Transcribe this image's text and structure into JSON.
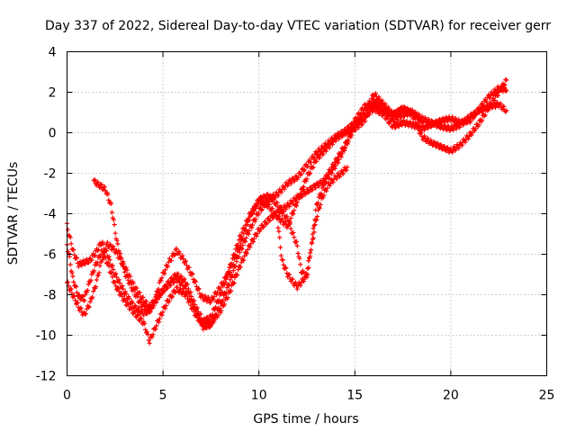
{
  "chart_data": {
    "type": "scatter",
    "title": "Day 337 of 2022, Sidereal Day-to-day VTEC variation (SDTVAR) for receiver gerr",
    "xlabel": "GPS time / hours",
    "ylabel": "SDTVAR / TECUs",
    "xlim": [
      0,
      25
    ],
    "ylim": [
      -12,
      4
    ],
    "xticks": [
      "0",
      "5",
      "10",
      "15",
      "20",
      "25"
    ],
    "yticks": [
      "-12",
      "-10",
      "-8",
      "-6",
      "-4",
      "-2",
      "0",
      "2",
      "4"
    ],
    "grid": true,
    "marker": "plus",
    "color": "#ff0000",
    "series": [
      {
        "x": [
          0.0,
          0.3,
          0.6,
          0.9,
          1.2,
          1.5,
          1.8,
          2.1,
          2.5,
          3.0,
          3.5,
          4.0,
          4.3,
          4.7,
          5.2,
          5.7,
          6.2,
          6.7,
          7.1,
          7.5,
          8.0,
          8.5,
          9.0,
          9.5,
          10.0,
          10.5,
          11.0,
          11.5,
          12.0,
          12.5,
          13.0,
          13.5,
          14.0,
          14.5,
          15.0,
          15.5,
          16.0,
          16.5,
          17.0,
          17.5,
          18.0,
          18.5,
          19.0,
          19.5,
          20.0,
          20.5,
          21.0,
          21.5,
          22.0,
          22.5,
          22.9
        ],
        "y": [
          -7.4,
          -8.0,
          -8.6,
          -9.0,
          -8.4,
          -7.5,
          -6.3,
          -5.5,
          -5.8,
          -6.6,
          -7.6,
          -8.3,
          -8.6,
          -8.1,
          -7.6,
          -7.2,
          -7.7,
          -8.8,
          -9.6,
          -9.5,
          -8.5,
          -7.3,
          -5.9,
          -4.8,
          -3.9,
          -3.3,
          -3.0,
          -2.5,
          -2.2,
          -1.6,
          -1.0,
          -0.6,
          -0.2,
          0.1,
          0.5,
          0.8,
          1.2,
          0.9,
          0.3,
          0.5,
          0.4,
          0.2,
          0.4,
          0.6,
          0.7,
          0.5,
          0.6,
          1.2,
          1.8,
          2.2,
          2.1
        ]
      },
      {
        "x": [
          0.0,
          0.3,
          0.6,
          0.9,
          1.2,
          1.5,
          1.8,
          2.1,
          2.5,
          3.0,
          3.5,
          4.0,
          4.3,
          4.7,
          5.2,
          5.7,
          6.2,
          6.7,
          7.1,
          7.5,
          8.0,
          8.5,
          9.0,
          9.5,
          10.0,
          10.5,
          11.0,
          11.5,
          12.0,
          12.5,
          13.0,
          13.5,
          14.0,
          14.5,
          15.0,
          15.5,
          16.0,
          16.5,
          17.0,
          17.5,
          18.0,
          18.5,
          19.0,
          19.5,
          20.0,
          20.5,
          21.0,
          21.5,
          22.0,
          22.5,
          22.9
        ],
        "y": [
          -4.6,
          -5.8,
          -6.5,
          -6.4,
          -6.3,
          -5.9,
          -5.4,
          -6.0,
          -7.0,
          -7.9,
          -8.6,
          -8.9,
          -8.8,
          -8.2,
          -7.5,
          -7.0,
          -7.4,
          -8.6,
          -9.3,
          -9.1,
          -8.0,
          -6.6,
          -5.2,
          -4.1,
          -3.4,
          -3.6,
          -4.2,
          -4.6,
          -3.4,
          -2.2,
          -1.3,
          -0.8,
          -0.3,
          0.0,
          0.2,
          0.6,
          1.6,
          1.3,
          0.6,
          0.9,
          1.0,
          0.7,
          0.5,
          0.3,
          0.2,
          0.4,
          0.8,
          1.1,
          1.3,
          1.4,
          1.1
        ]
      },
      {
        "x": [
          0.0,
          0.3,
          0.6,
          0.9,
          1.2,
          1.5,
          1.8,
          2.1,
          2.5,
          3.0,
          3.5,
          4.0,
          4.3,
          4.7,
          5.2,
          5.7,
          6.2,
          6.7,
          7.1,
          7.5,
          8.0,
          8.5,
          9.0,
          9.5,
          10.0,
          10.5,
          11.0,
          11.5,
          12.0,
          12.5,
          13.0,
          13.5,
          14.0,
          14.5,
          15.0,
          15.5,
          16.0,
          16.5,
          17.0,
          17.5,
          18.0,
          18.5,
          19.0,
          19.5,
          20.0,
          20.5,
          21.0,
          21.5,
          22.0,
          22.5,
          22.9
        ],
        "y": [
          -5.5,
          -7.2,
          -8.1,
          -8.2,
          -7.3,
          -6.5,
          -5.9,
          -6.4,
          -7.5,
          -8.3,
          -8.9,
          -9.4,
          -10.3,
          -9.4,
          -8.4,
          -7.7,
          -8.0,
          -9.0,
          -9.5,
          -9.4,
          -8.8,
          -7.8,
          -6.6,
          -5.6,
          -4.8,
          -4.3,
          -3.9,
          -3.6,
          -3.2,
          -2.9,
          -2.6,
          -2.3,
          -1.6,
          -0.7,
          0.3,
          1.0,
          1.9,
          1.4,
          0.9,
          1.2,
          0.9,
          -0.2,
          -0.5,
          -0.7,
          -0.9,
          -0.6,
          -0.1,
          0.5,
          1.3,
          2.0,
          2.6
        ]
      },
      {
        "x": [
          1.4,
          1.7,
          2.0,
          2.3,
          2.6,
          3.0,
          3.4,
          3.8,
          4.2,
          4.5,
          4.9,
          5.3,
          5.7,
          6.1,
          6.5,
          7.0,
          7.5,
          8.0,
          8.5,
          9.0,
          9.5,
          10.0,
          10.5,
          11.0,
          11.5,
          12.0,
          12.2,
          12.5,
          13.0,
          13.5,
          14.0,
          14.5,
          15.0,
          15.5,
          16.0,
          16.5,
          17.0,
          17.5,
          18.0,
          18.5
        ],
        "y": [
          -2.4,
          -2.6,
          -2.8,
          -3.6,
          -5.4,
          -6.9,
          -7.7,
          -8.4,
          -8.7,
          -8.5,
          -7.2,
          -6.4,
          -5.8,
          -6.3,
          -7.0,
          -8.1,
          -8.3,
          -7.6,
          -6.8,
          -5.6,
          -4.2,
          -3.3,
          -3.1,
          -3.6,
          -4.3,
          -5.6,
          -6.8,
          -7.2,
          -3.6,
          -2.2,
          -1.4,
          -0.6,
          0.6,
          1.3,
          1.4,
          1.1,
          0.9,
          1.2,
          1.0,
          0.5
        ]
      },
      {
        "x": [
          11.0,
          11.2,
          11.5,
          11.8,
          12.0,
          12.3,
          12.5,
          12.8,
          13.0,
          13.3,
          13.6,
          14.0,
          14.3,
          14.6
        ],
        "y": [
          -4.6,
          -6.3,
          -7.0,
          -7.4,
          -7.6,
          -7.3,
          -6.9,
          -5.3,
          -4.2,
          -3.2,
          -2.6,
          -2.2,
          -2.0,
          -1.7
        ]
      }
    ]
  }
}
